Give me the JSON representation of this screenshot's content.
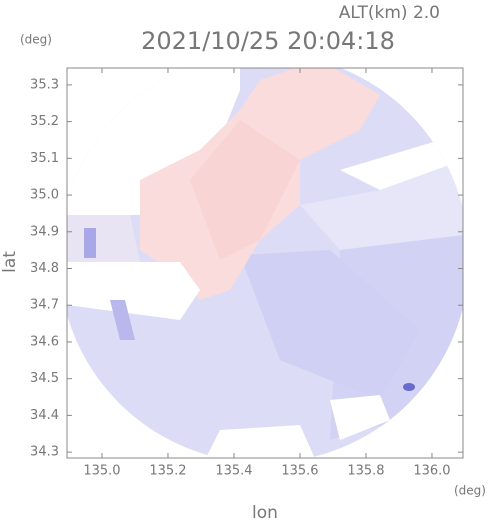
{
  "chart_data": {
    "type": "radar",
    "title": "2021/10/25 20:04:18",
    "altitude": "ALT(km) 2.0",
    "y_unit": "(deg)",
    "x_unit": "(deg)",
    "xlabel": "lon",
    "ylabel": "lat",
    "xlim": [
      134.894,
      136.094
    ],
    "xticks": [
      {
        "value": 135,
        "label": "135.0"
      },
      135.2,
      135.4,
      135.6,
      135.8,
      {
        "value": 136,
        "label": "136.0"
      }
    ],
    "ylim": [
      34.284,
      35.346
    ],
    "yticks": [
      34.3,
      34.4,
      34.5,
      34.6,
      34.7,
      34.8,
      34.9,
      {
        "value": 35,
        "label": "35.0"
      },
      35.1,
      35.2,
      35.3
    ]
  }
}
